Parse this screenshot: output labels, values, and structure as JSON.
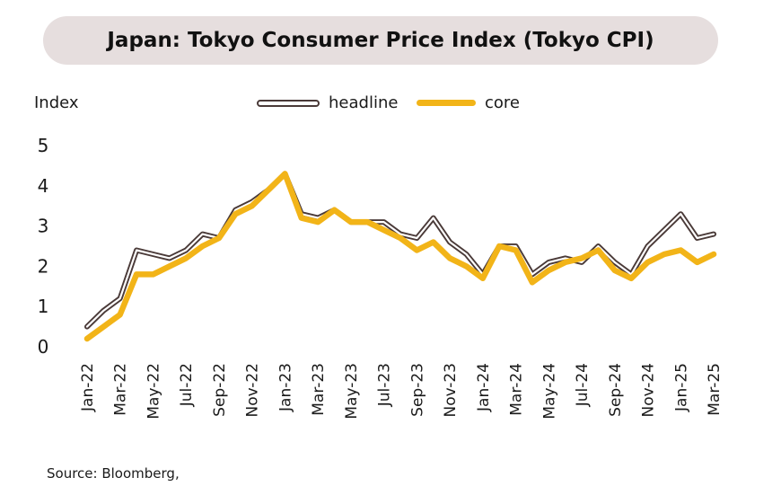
{
  "title": "Japan: Tokyo Consumer Price Index (Tokyo CPI)",
  "source": "Source: Bloomberg,",
  "colors": {
    "headline_outline": "#4a3a38",
    "headline_fill": "#ffffff",
    "core": "#f2b418",
    "title_bg": "#e6dede"
  },
  "chart_data": {
    "type": "line",
    "title": "Japan: Tokyo Consumer Price Index (Tokyo CPI)",
    "ylabel": "Index",
    "xlabel": "",
    "ylim": [
      0,
      5
    ],
    "yticks": [
      0,
      1,
      2,
      3,
      4,
      5
    ],
    "grid": false,
    "legend_position": "top-center",
    "x": [
      "Jan-22",
      "Feb-22",
      "Mar-22",
      "Apr-22",
      "May-22",
      "Jun-22",
      "Jul-22",
      "Aug-22",
      "Sep-22",
      "Oct-22",
      "Nov-22",
      "Dec-22",
      "Jan-23",
      "Feb-23",
      "Mar-23",
      "Apr-23",
      "May-23",
      "Jun-23",
      "Jul-23",
      "Aug-23",
      "Sep-23",
      "Oct-23",
      "Nov-23",
      "Dec-23",
      "Jan-24",
      "Feb-24",
      "Mar-24",
      "Apr-24",
      "May-24",
      "Jun-24",
      "Jul-24",
      "Aug-24",
      "Sep-24",
      "Oct-24",
      "Nov-24",
      "Dec-24",
      "Jan-25",
      "Feb-25",
      "Mar-25"
    ],
    "x_tick_labels": [
      "Jan-22",
      "Mar-22",
      "May-22",
      "Jul-22",
      "Sep-22",
      "Nov-22",
      "Jan-23",
      "Mar-23",
      "May-23",
      "Jul-23",
      "Sep-23",
      "Nov-23",
      "Jan-24",
      "Mar-24",
      "May-24",
      "Jul-24",
      "Sep-24",
      "Nov-24",
      "Jan-25",
      "Mar-25"
    ],
    "series": [
      {
        "name": "headline",
        "values": [
          0.5,
          0.9,
          1.2,
          2.4,
          2.3,
          2.2,
          2.4,
          2.8,
          2.7,
          3.4,
          3.6,
          3.9,
          4.3,
          3.3,
          3.2,
          3.4,
          3.1,
          3.1,
          3.1,
          2.8,
          2.7,
          3.2,
          2.6,
          2.3,
          1.8,
          2.5,
          2.5,
          1.8,
          2.1,
          2.2,
          2.1,
          2.5,
          2.1,
          1.8,
          2.5,
          2.9,
          3.3,
          2.7,
          2.8
        ]
      },
      {
        "name": "core",
        "values": [
          0.2,
          0.5,
          0.8,
          1.8,
          1.8,
          2.0,
          2.2,
          2.5,
          2.7,
          3.3,
          3.5,
          3.9,
          4.3,
          3.2,
          3.1,
          3.4,
          3.1,
          3.1,
          2.9,
          2.7,
          2.4,
          2.6,
          2.2,
          2.0,
          1.7,
          2.5,
          2.4,
          1.6,
          1.9,
          2.1,
          2.2,
          2.4,
          1.9,
          1.7,
          2.1,
          2.3,
          2.4,
          2.1,
          2.3
        ]
      }
    ]
  }
}
